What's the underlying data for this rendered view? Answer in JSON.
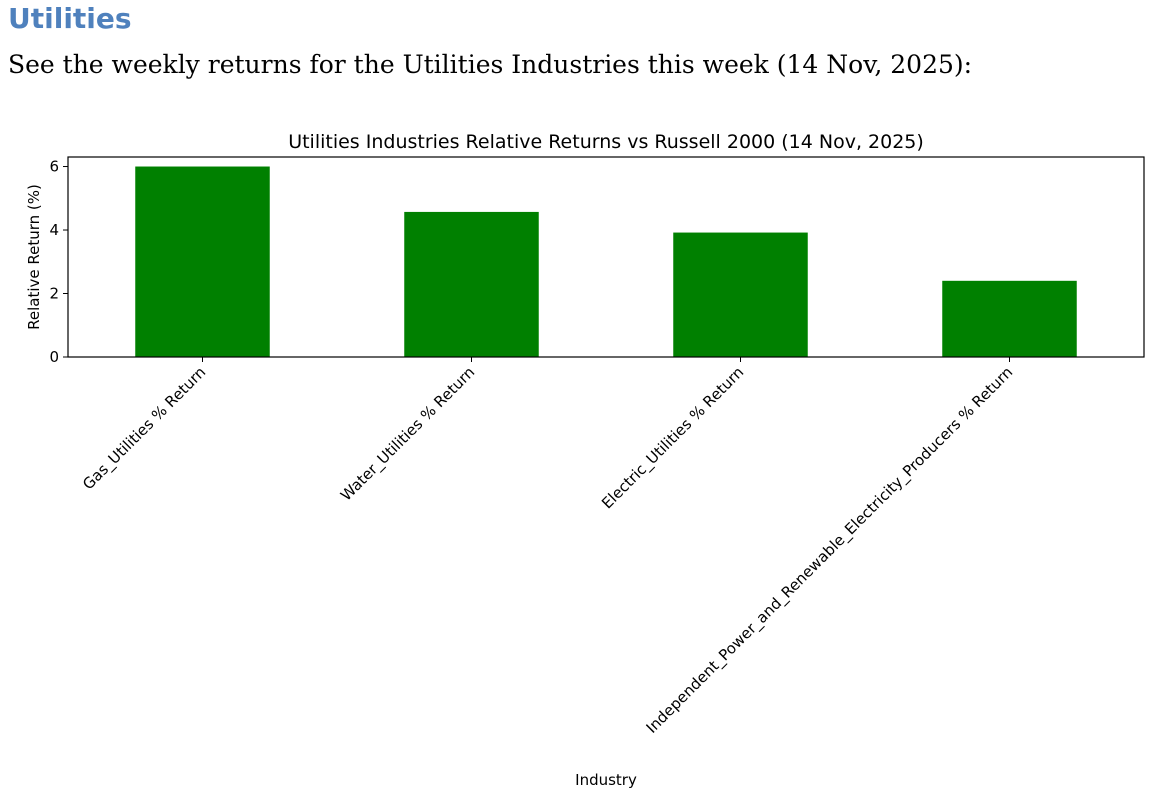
{
  "page": {
    "heading": "Utilities",
    "heading_color": "#4f81bd",
    "intro": "See the weekly returns for the Utilities Industries this week (14 Nov, 2025):"
  },
  "chart_data": {
    "type": "bar",
    "title": "Utilities Industries Relative Returns vs Russell 2000 (14 Nov, 2025)",
    "xlabel": "Industry",
    "ylabel": "Relative Return (%)",
    "categories": [
      "Gas_Utilities % Return",
      "Water_Utilities % Return",
      "Electric_Utilities % Return",
      "Independent_Power_and_Renewable_Electricity_Producers % Return"
    ],
    "values": [
      6.0,
      4.57,
      3.92,
      2.4
    ],
    "ylim": [
      0,
      6.3
    ],
    "yticks": [
      0,
      2,
      4,
      6
    ],
    "bar_color": "#008000",
    "grid": false,
    "legend": "none"
  }
}
